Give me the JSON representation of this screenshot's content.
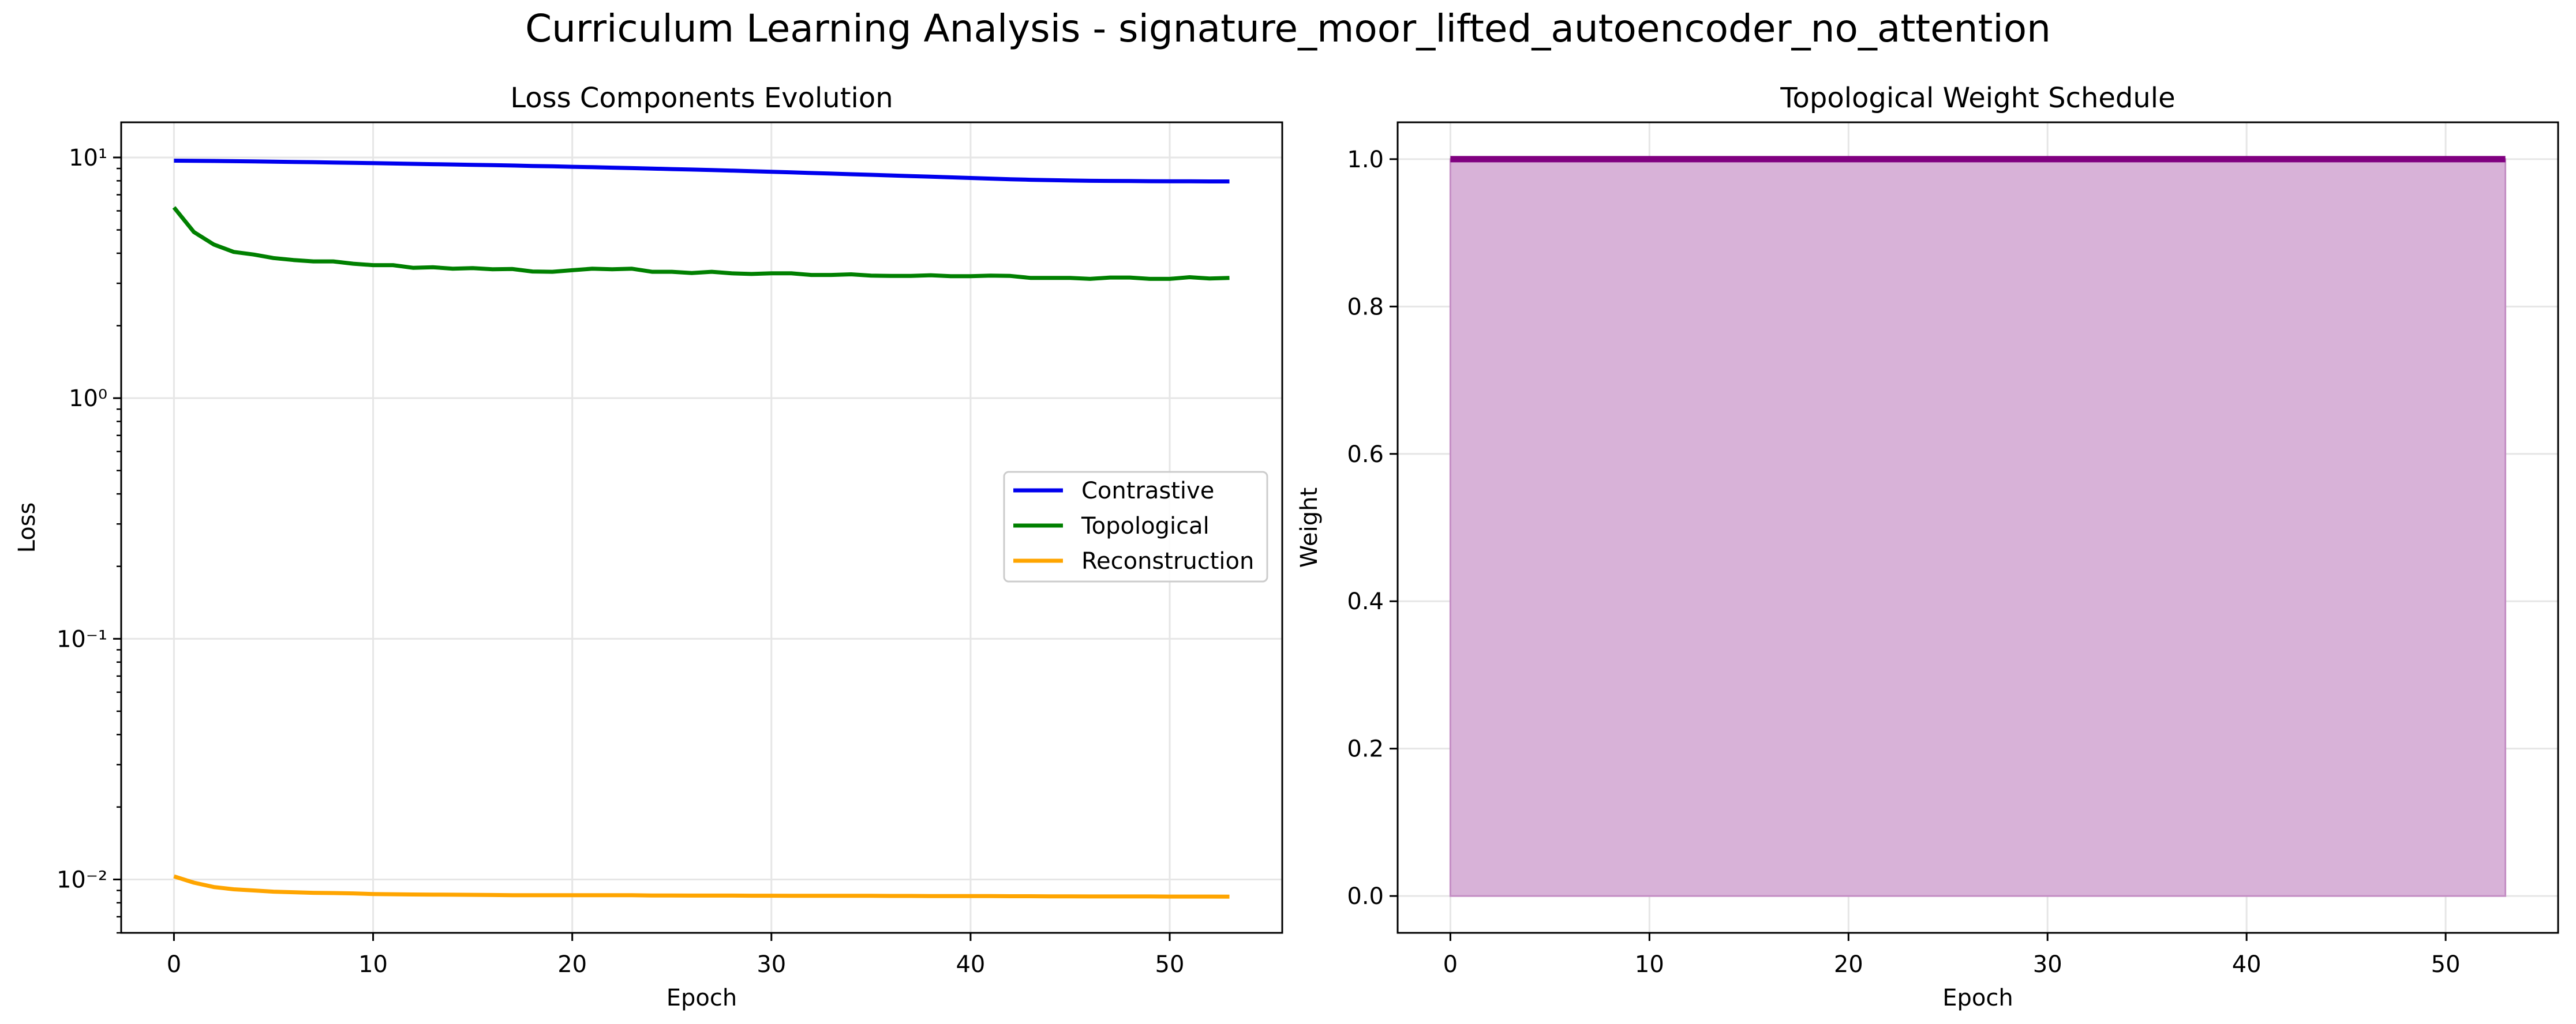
{
  "figure": {
    "suptitle": "Curriculum Learning Analysis - signature_moor_lifted_autoencoder_no_attention"
  },
  "colors": {
    "contrastive": "#0000ee",
    "topological": "#008000",
    "reconstruction": "#ffa500",
    "weight_line": "#800080",
    "weight_fill": "#d8b2d8",
    "grid": "#e6e6e6"
  },
  "chart_data": [
    {
      "type": "line",
      "title": "Loss Components Evolution",
      "xlabel": "Epoch",
      "ylabel": "Loss",
      "yscale": "log",
      "xlim": [
        -2.65,
        55.65
      ],
      "ylim": [
        0.006,
        14
      ],
      "xticks": [
        0,
        10,
        20,
        30,
        40,
        50
      ],
      "yticks": [
        {
          "value": 0.01,
          "label": "10⁻²"
        },
        {
          "value": 0.1,
          "label": "10⁻¹"
        },
        {
          "value": 1,
          "label": "10⁰"
        },
        {
          "value": 10,
          "label": "10¹"
        }
      ],
      "grid": true,
      "legend_location": "center-right",
      "series": [
        {
          "name": "Contrastive",
          "color": "#0000ee",
          "x": [
            0,
            1,
            2,
            3,
            4,
            5,
            6,
            7,
            8,
            9,
            10,
            11,
            12,
            13,
            14,
            15,
            16,
            17,
            18,
            19,
            20,
            21,
            22,
            23,
            24,
            25,
            26,
            27,
            28,
            29,
            30,
            31,
            32,
            33,
            34,
            35,
            36,
            37,
            38,
            39,
            40,
            41,
            42,
            43,
            44,
            45,
            46,
            47,
            48,
            49,
            50,
            51,
            52,
            53
          ],
          "y": [
            9.7,
            9.69,
            9.67,
            9.65,
            9.63,
            9.61,
            9.58,
            9.56,
            9.53,
            9.5,
            9.47,
            9.44,
            9.41,
            9.38,
            9.35,
            9.32,
            9.29,
            9.26,
            9.22,
            9.19,
            9.15,
            9.11,
            9.07,
            9.03,
            8.99,
            8.95,
            8.91,
            8.87,
            8.82,
            8.77,
            8.72,
            8.67,
            8.62,
            8.57,
            8.52,
            8.47,
            8.42,
            8.37,
            8.32,
            8.27,
            8.22,
            8.17,
            8.12,
            8.08,
            8.05,
            8.02,
            8.0,
            7.99,
            7.98,
            7.97,
            7.96,
            7.96,
            7.95,
            7.95
          ]
        },
        {
          "name": "Topological",
          "color": "#008000",
          "x": [
            0,
            1,
            2,
            3,
            4,
            5,
            6,
            7,
            8,
            9,
            10,
            11,
            12,
            13,
            14,
            15,
            16,
            17,
            18,
            19,
            20,
            21,
            22,
            23,
            24,
            25,
            26,
            27,
            28,
            29,
            30,
            31,
            32,
            33,
            34,
            35,
            36,
            37,
            38,
            39,
            40,
            41,
            42,
            43,
            44,
            45,
            46,
            47,
            48,
            49,
            50,
            51,
            52,
            53
          ],
          "y": [
            6.2,
            4.9,
            4.35,
            4.05,
            3.95,
            3.82,
            3.75,
            3.7,
            3.7,
            3.62,
            3.57,
            3.57,
            3.48,
            3.5,
            3.45,
            3.47,
            3.43,
            3.44,
            3.36,
            3.35,
            3.4,
            3.45,
            3.43,
            3.45,
            3.35,
            3.35,
            3.31,
            3.35,
            3.3,
            3.28,
            3.3,
            3.3,
            3.25,
            3.25,
            3.27,
            3.23,
            3.22,
            3.22,
            3.24,
            3.21,
            3.21,
            3.23,
            3.22,
            3.16,
            3.16,
            3.16,
            3.13,
            3.17,
            3.17,
            3.13,
            3.13,
            3.18,
            3.14,
            3.16
          ]
        },
        {
          "name": "Reconstruction",
          "color": "#ffa500",
          "x": [
            0,
            1,
            2,
            3,
            4,
            5,
            6,
            7,
            8,
            9,
            10,
            11,
            12,
            13,
            14,
            15,
            16,
            17,
            18,
            19,
            20,
            21,
            22,
            23,
            24,
            25,
            26,
            27,
            28,
            29,
            30,
            31,
            32,
            33,
            34,
            35,
            36,
            37,
            38,
            39,
            40,
            41,
            42,
            43,
            44,
            45,
            46,
            47,
            48,
            49,
            50,
            51,
            52,
            53
          ],
          "y": [
            0.0103,
            0.0097,
            0.0093,
            0.0091,
            0.009,
            0.0089,
            0.00885,
            0.0088,
            0.00878,
            0.00875,
            0.0087,
            0.00868,
            0.00866,
            0.00865,
            0.00864,
            0.00863,
            0.00862,
            0.0086,
            0.0086,
            0.0086,
            0.0086,
            0.0086,
            0.0086,
            0.0086,
            0.00858,
            0.00858,
            0.00857,
            0.00857,
            0.00857,
            0.00856,
            0.00856,
            0.00855,
            0.00855,
            0.00855,
            0.00855,
            0.00855,
            0.00854,
            0.00854,
            0.00853,
            0.00853,
            0.00853,
            0.00853,
            0.00852,
            0.00852,
            0.00851,
            0.00851,
            0.0085,
            0.0085,
            0.0085,
            0.0085,
            0.00849,
            0.00849,
            0.00849,
            0.00848
          ]
        }
      ]
    },
    {
      "type": "area",
      "title": "Topological Weight Schedule",
      "xlabel": "Epoch",
      "ylabel": "Weight",
      "xlim": [
        -2.65,
        55.65
      ],
      "ylim": [
        -0.05,
        1.05
      ],
      "xticks": [
        0,
        10,
        20,
        30,
        40,
        50
      ],
      "yticks": [
        0.0,
        0.2,
        0.4,
        0.6,
        0.8,
        1.0
      ],
      "grid": true,
      "series": [
        {
          "color": "#800080",
          "x": [
            0,
            53
          ],
          "y": [
            1.0,
            1.0
          ],
          "fill_to": 0
        }
      ]
    }
  ]
}
